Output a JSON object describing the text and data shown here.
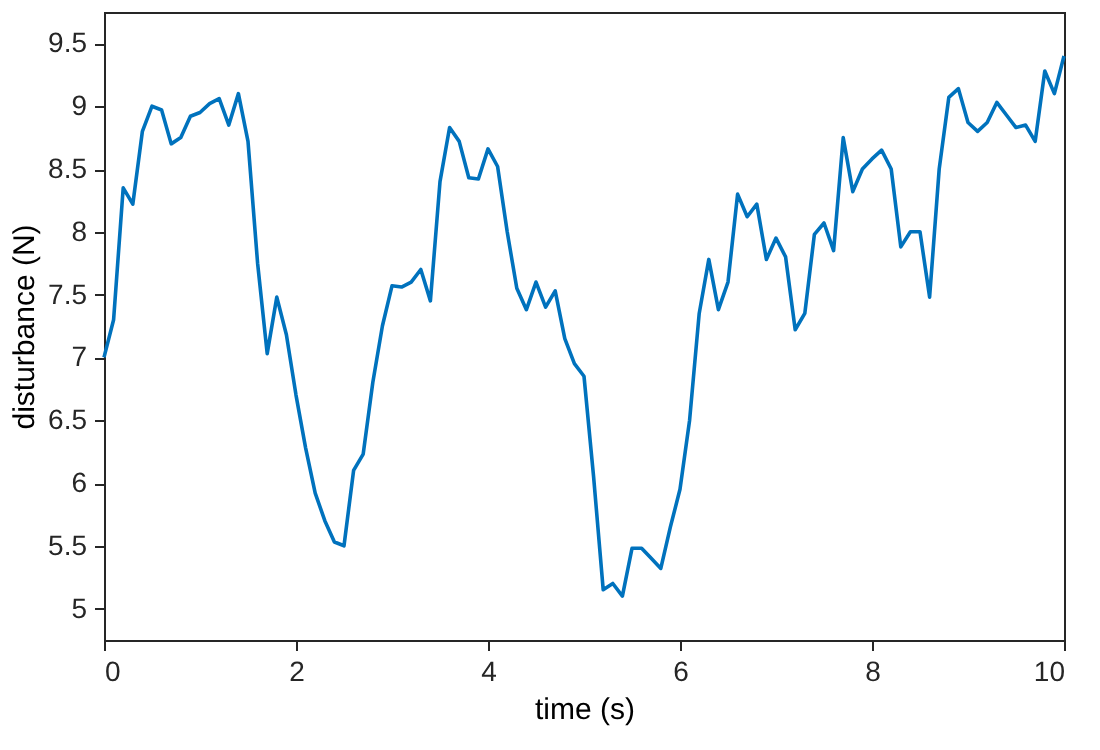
{
  "chart_data": {
    "type": "line",
    "xlabel": "time (s)",
    "ylabel": "disturbance (N)",
    "x": [
      0,
      0.1,
      0.2,
      0.3,
      0.4,
      0.5,
      0.6,
      0.7,
      0.8,
      0.9,
      1,
      1.1,
      1.2,
      1.3,
      1.4,
      1.5,
      1.6,
      1.7,
      1.8,
      1.9,
      2,
      2.1,
      2.2,
      2.3,
      2.4,
      2.5,
      2.6,
      2.7,
      2.8,
      2.9,
      3,
      3.1,
      3.2,
      3.3,
      3.4,
      3.5,
      3.6,
      3.7,
      3.8,
      3.9,
      4,
      4.1,
      4.2,
      4.3,
      4.4,
      4.5,
      4.6,
      4.7,
      4.8,
      4.9,
      5,
      5.1,
      5.2,
      5.3,
      5.4,
      5.5,
      5.6,
      5.7,
      5.8,
      5.9,
      6,
      6.1,
      6.2,
      6.3,
      6.4,
      6.5,
      6.6,
      6.7,
      6.8,
      6.9,
      7,
      7.1,
      7.2,
      7.3,
      7.4,
      7.5,
      7.6,
      7.7,
      7.8,
      7.9,
      8,
      8.1,
      8.2,
      8.3,
      8.4,
      8.5,
      8.6,
      8.7,
      8.8,
      8.9,
      9,
      9.1,
      9.2,
      9.3,
      9.4,
      9.5,
      9.6,
      9.7,
      9.8,
      9.9,
      10
    ],
    "series": [
      {
        "color": "#0072bd",
        "values": [
          7.0,
          7.3,
          8.35,
          8.22,
          8.8,
          9.0,
          8.97,
          8.7,
          8.75,
          8.92,
          8.95,
          9.02,
          9.06,
          8.85,
          9.1,
          8.72,
          7.75,
          7.03,
          7.48,
          7.18,
          6.7,
          6.28,
          5.92,
          5.7,
          5.53,
          5.5,
          6.1,
          6.23,
          6.8,
          7.25,
          7.57,
          7.56,
          7.6,
          7.7,
          7.45,
          8.4,
          8.83,
          8.72,
          8.43,
          8.42,
          8.66,
          8.52,
          8.0,
          7.55,
          7.38,
          7.6,
          7.4,
          7.53,
          7.15,
          6.95,
          6.85,
          6.05,
          5.15,
          5.2,
          5.1,
          5.48,
          5.48,
          5.4,
          5.32,
          5.65,
          5.95,
          6.5,
          7.35,
          7.78,
          7.38,
          7.6,
          8.3,
          8.12,
          8.22,
          7.78,
          7.95,
          7.8,
          7.22,
          7.35,
          7.98,
          8.07,
          7.85,
          8.75,
          8.32,
          8.5,
          8.58,
          8.65,
          8.5,
          7.88,
          8.0,
          8.0,
          7.48,
          8.5,
          9.07,
          9.14,
          8.87,
          8.8,
          8.87,
          9.03,
          8.93,
          8.83,
          8.85,
          8.72,
          9.28,
          9.1,
          9.4
        ]
      }
    ],
    "xlim": [
      0,
      10
    ],
    "xticks": [
      0,
      2,
      4,
      6,
      8,
      10
    ],
    "ylim": [
      4.75,
      9.75
    ],
    "yticks": [
      5,
      5.5,
      6,
      6.5,
      7,
      7.5,
      8,
      8.5,
      9,
      9.5
    ],
    "grid": false
  }
}
